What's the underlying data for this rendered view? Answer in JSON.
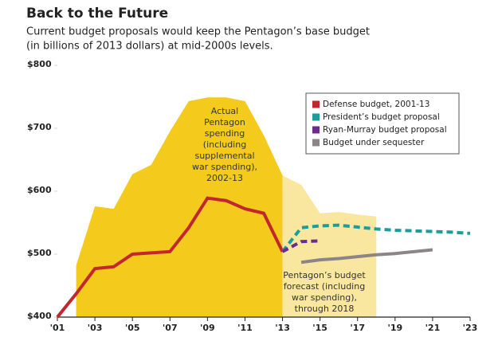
{
  "chart_data": {
    "type": "line",
    "title": "Back to the Future",
    "subtitle": [
      "Current budget proposals would keep the Pentagon’s base budget",
      "(in billions of 2013 dollars) at mid-2000s levels."
    ],
    "xlim": [
      2001,
      2023
    ],
    "xticks": [
      {
        "value": 2001,
        "label": "'01"
      },
      {
        "value": 2003,
        "label": "'03"
      },
      {
        "value": 2005,
        "label": "'05"
      },
      {
        "value": 2007,
        "label": "'07"
      },
      {
        "value": 2009,
        "label": "'09"
      },
      {
        "value": 2011,
        "label": "'11"
      },
      {
        "value": 2013,
        "label": "'13"
      },
      {
        "value": 2015,
        "label": "'15"
      },
      {
        "value": 2017,
        "label": "'17"
      },
      {
        "value": 2019,
        "label": "'19"
      },
      {
        "value": 2021,
        "label": "'21"
      },
      {
        "value": 2023,
        "label": "'23"
      }
    ],
    "ylim": [
      400,
      800
    ],
    "yticks": [
      {
        "value": 400,
        "label": "$400"
      },
      {
        "value": 500,
        "label": "$500"
      },
      {
        "value": 600,
        "label": "$600"
      },
      {
        "value": 700,
        "label": "$700"
      },
      {
        "value": 800,
        "label": "$800"
      }
    ],
    "areas": [
      {
        "color": "#f4cb1c",
        "x": [
          2002,
          2003,
          2004,
          2005,
          2006,
          2007,
          2008,
          2009,
          2010,
          2011,
          2012,
          2013
        ],
        "values": [
          482,
          576,
          572,
          627,
          642,
          695,
          743,
          749,
          749,
          743,
          689,
          625
        ]
      },
      {
        "color": "#f9e7a0",
        "x": [
          2013,
          2014,
          2015,
          2016,
          2017,
          2018
        ],
        "values": [
          625,
          610,
          565,
          567,
          563,
          560
        ]
      }
    ],
    "series": [
      {
        "name": "Defense budget, 2001-13",
        "color": "#c1272d",
        "style": "solid",
        "x": [
          2001,
          2002,
          2003,
          2004,
          2005,
          2006,
          2007,
          2008,
          2009,
          2010,
          2011,
          2012,
          2013
        ],
        "values": [
          400,
          437,
          477,
          480,
          500,
          502,
          504,
          542,
          589,
          585,
          572,
          565,
          504
        ]
      },
      {
        "name": "President’s budget proposal",
        "color": "#1b9e9a",
        "style": "dashed",
        "x": [
          2013,
          2014,
          2015,
          2016,
          2017,
          2018,
          2019,
          2020,
          2021,
          2022,
          2023
        ],
        "values": [
          504,
          542,
          545,
          546,
          543,
          540,
          538,
          537,
          536,
          535,
          533
        ]
      },
      {
        "name": "Ryan-Murray budget proposal",
        "color": "#6b2c91",
        "style": "dashed",
        "x": [
          2013,
          2014,
          2015
        ],
        "values": [
          504,
          520,
          521
        ]
      },
      {
        "name": "Budget under sequester",
        "color": "#8c8587",
        "style": "solid",
        "x": [
          2014,
          2015,
          2016,
          2017,
          2018,
          2019,
          2020,
          2021
        ],
        "values": [
          487,
          491,
          493,
          496,
          499,
          501,
          504,
          507
        ]
      }
    ],
    "annotations": [
      [
        "Actual",
        "Pentagon",
        "spending",
        "(including",
        "supplemental",
        "war spending),",
        "2002-13"
      ],
      [
        "Pentagon’s budget",
        "forecast (including",
        "war spending),",
        "through 2018"
      ]
    ]
  }
}
